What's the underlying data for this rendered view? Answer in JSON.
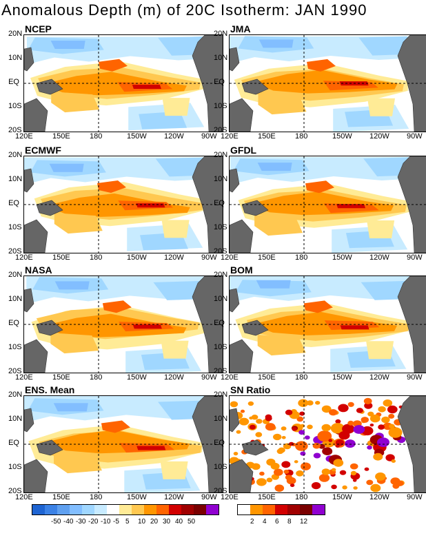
{
  "title": "Anomalous Depth (m) of 20C Isotherm: JAN 1990",
  "y_ticks": [
    "20N",
    "10N",
    "EQ",
    "10S",
    "20S"
  ],
  "x_ticks": [
    "120E",
    "150E",
    "180",
    "150W",
    "120W",
    "90W"
  ],
  "panels": [
    {
      "name": "NCEP"
    },
    {
      "name": "JMA"
    },
    {
      "name": "ECMWF"
    },
    {
      "name": "GFDL"
    },
    {
      "name": "NASA"
    },
    {
      "name": "BOM"
    },
    {
      "name": "ENS. Mean"
    },
    {
      "name": "SN Ratio"
    }
  ],
  "legend_depth": {
    "colors": [
      "#1e64d2",
      "#3c82e6",
      "#5fa0f0",
      "#82beff",
      "#a0d7ff",
      "#c8ebff",
      "#ffffff",
      "#ffeb96",
      "#ffc850",
      "#ff9600",
      "#ff6400",
      "#d20000",
      "#a00000",
      "#7a0000",
      "#9000d0"
    ],
    "labels": [
      "-50",
      "-40",
      "-30",
      "-20",
      "-10",
      "-5",
      "5",
      "10",
      "20",
      "30",
      "40",
      "50"
    ]
  },
  "legend_sn": {
    "colors": [
      "#ffffff",
      "#ff9600",
      "#ff6400",
      "#d20000",
      "#a00000",
      "#7a0000",
      "#9000d0"
    ],
    "labels": [
      "2",
      "4",
      "6",
      "8",
      "12"
    ]
  }
}
